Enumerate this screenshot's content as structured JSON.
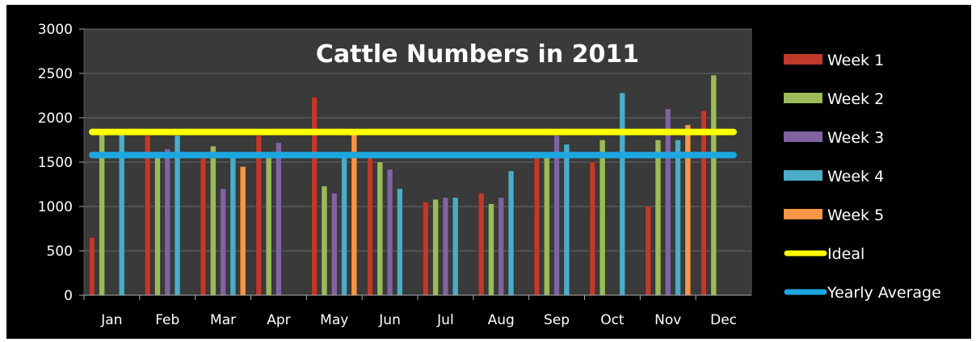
{
  "chart_data": {
    "type": "bar",
    "title": "Cattle Numbers in 2011",
    "xlabel": "",
    "ylabel": "",
    "ylim": [
      0,
      3000
    ],
    "yticks": [
      "0",
      "500",
      "1000",
      "1500",
      "2000",
      "2500",
      "3000"
    ],
    "categories": [
      "Jan",
      "Feb",
      "Mar",
      "Apr",
      "May",
      "Jun",
      "Jul",
      "Aug",
      "Sep",
      "Oct",
      "Nov",
      "Dec"
    ],
    "grid": true,
    "legend_position": "right",
    "series": [
      {
        "name": "Week 1",
        "color": "#c0392b",
        "values": [
          650,
          1800,
          1550,
          1800,
          2230,
          1550,
          1050,
          1150,
          1550,
          1500,
          1000,
          2080
        ]
      },
      {
        "name": "Week 2",
        "color": "#9bbb59",
        "values": [
          1850,
          1550,
          1680,
          1550,
          1230,
          1500,
          1080,
          1030,
          1550,
          1750,
          1750,
          2480
        ]
      },
      {
        "name": "Week 3",
        "color": "#8064a2",
        "values": [
          null,
          1650,
          1200,
          1720,
          1150,
          1420,
          1100,
          1100,
          1800,
          null,
          2100,
          null
        ]
      },
      {
        "name": "Week 4",
        "color": "#4bacc6",
        "values": [
          1830,
          1800,
          1550,
          null,
          1550,
          1200,
          1100,
          1400,
          1700,
          2280,
          1750,
          null
        ]
      },
      {
        "name": "Week 5",
        "color": "#f79646",
        "values": [
          null,
          null,
          1450,
          null,
          1820,
          null,
          null,
          null,
          null,
          null,
          1920,
          null
        ]
      }
    ],
    "lines": [
      {
        "name": "Ideal",
        "color": "#ffff00",
        "value": 1840
      },
      {
        "name": "Yearly Average",
        "color": "#1ca7e0",
        "value": 1580
      }
    ]
  }
}
